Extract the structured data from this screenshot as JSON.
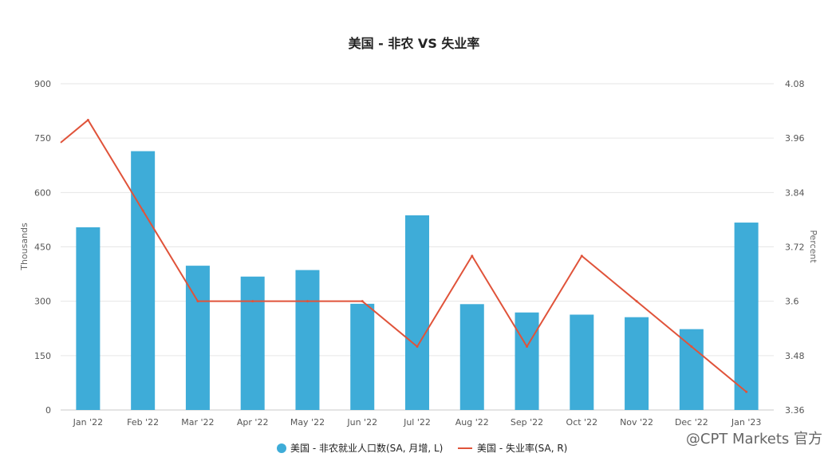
{
  "chart_data": {
    "type": "bar+line",
    "title": "美国 - 非农 VS 失业率",
    "categories": [
      "Jan '22",
      "Feb '22",
      "Mar '22",
      "Apr '22",
      "May '22",
      "Jun '22",
      "Jul '22",
      "Aug '22",
      "Sep '22",
      "Oct '22",
      "Nov '22",
      "Dec '22",
      "Jan '23"
    ],
    "series": [
      {
        "name": "美国 - 非农就业人口数(SA, 月增, L)",
        "type": "bar",
        "axis": "left",
        "color": "#3eacd8",
        "values": [
          504,
          714,
          398,
          368,
          386,
          293,
          537,
          292,
          269,
          263,
          256,
          223,
          517
        ]
      },
      {
        "name": "美国 - 失业率(SA, R)",
        "type": "line",
        "axis": "right",
        "color": "#e0533a",
        "values": [
          4.0,
          3.8,
          3.6,
          3.6,
          3.6,
          3.6,
          3.5,
          3.7,
          3.5,
          3.7,
          3.6,
          3.5,
          3.4
        ]
      }
    ],
    "line_start_value": 3.95,
    "left_axis": {
      "label": "Thousands",
      "ticks": [
        "0",
        "150",
        "300",
        "450",
        "600",
        "750",
        "900"
      ],
      "range": [
        0,
        900
      ]
    },
    "right_axis": {
      "label": "Percent",
      "ticks": [
        "3.36",
        "3.48",
        "3.6",
        "3.72",
        "3.84",
        "3.96",
        "4.08"
      ],
      "range": [
        3.36,
        4.08
      ]
    },
    "grid": true,
    "legend_position": "bottom"
  },
  "watermark": "@CPT Markets 官方"
}
